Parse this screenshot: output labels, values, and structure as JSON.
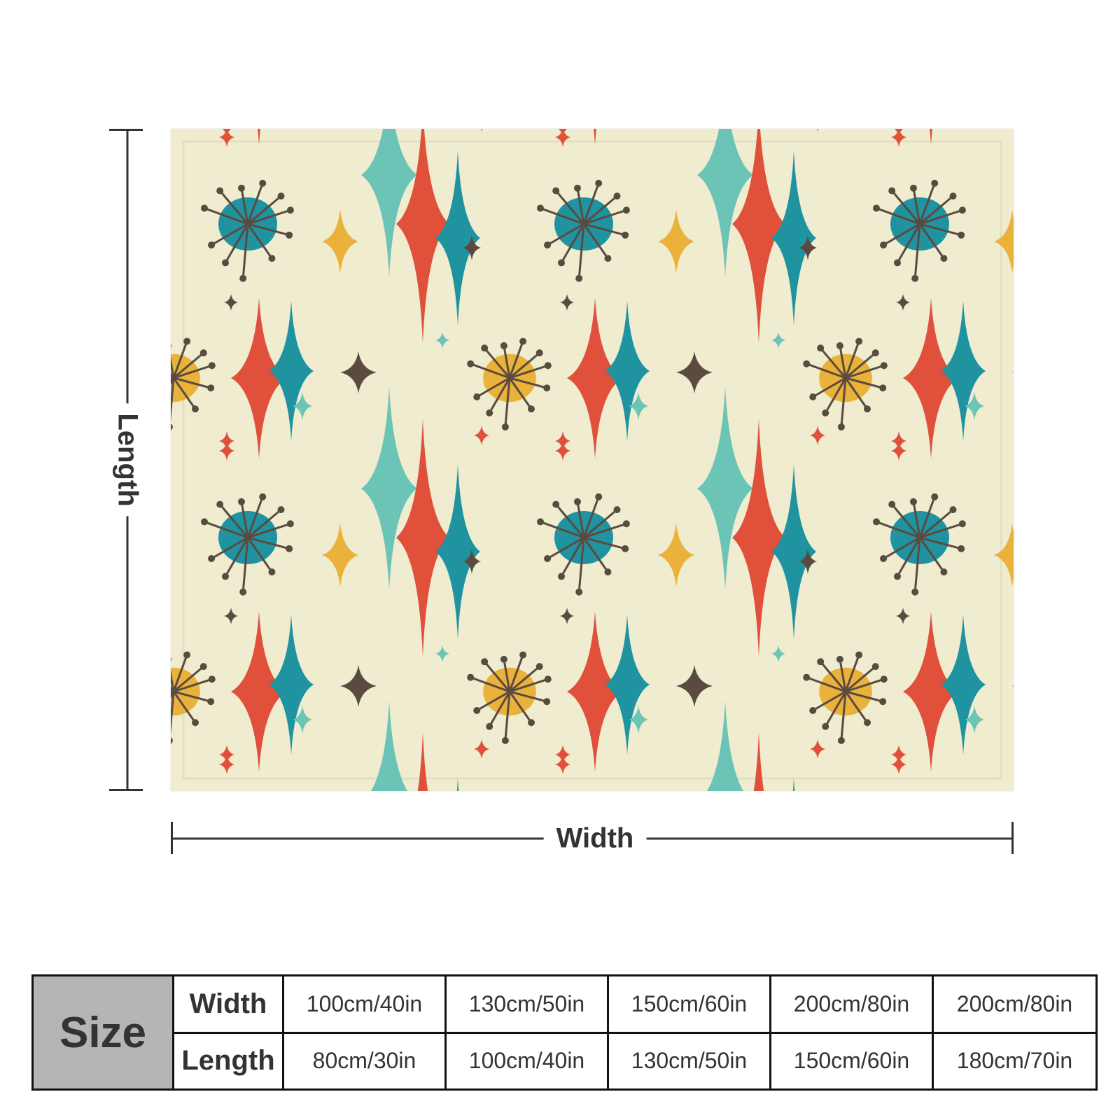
{
  "dimensions": {
    "length_label": "Length",
    "width_label": "Width"
  },
  "blanket": {
    "pattern": "mid-century atomic starburst",
    "colors": {
      "background": "#efecd0",
      "teal_dark": "#1f94a0",
      "teal_light": "#6cc4b6",
      "red": "#e0503a",
      "mustard": "#eab23a",
      "brown": "#5a4a3f"
    }
  },
  "size_table": {
    "header": "Size",
    "width_label": "Width",
    "length_label": "Length",
    "widths": [
      "100cm/40in",
      "130cm/50in",
      "150cm/60in",
      "200cm/80in",
      "200cm/80in"
    ],
    "lengths": [
      "80cm/30in",
      "100cm/40in",
      "130cm/50in",
      "150cm/60in",
      "180cm/70in"
    ]
  }
}
